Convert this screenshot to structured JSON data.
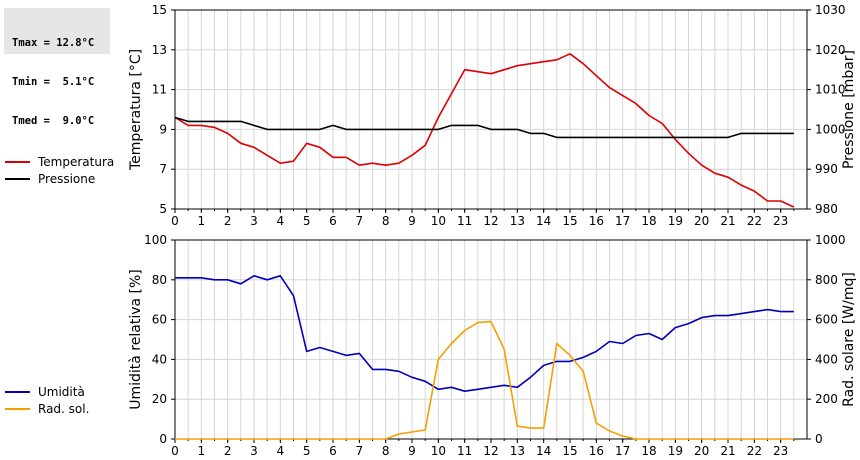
{
  "stats": {
    "tmax": "Tmax = 12.8°C",
    "tmin": "Tmin =  5.1°C",
    "tmed": "Tmed =  9.0°C"
  },
  "colors": {
    "red": "#dd0000",
    "black": "#000000",
    "blue": "#0000bb",
    "orange": "#f5a000"
  },
  "chart_data": [
    {
      "type": "line",
      "xlim": [
        0,
        24
      ],
      "x_ticks": [
        "0",
        "1",
        "2",
        "3",
        "4",
        "5",
        "6",
        "7",
        "8",
        "9",
        "10",
        "11",
        "12",
        "13",
        "14",
        "15",
        "16",
        "17",
        "18",
        "19",
        "20",
        "21",
        "22",
        "23"
      ],
      "ylabel": "Temperatura [°C]",
      "ylim": [
        5,
        15
      ],
      "y_ticks": [
        "5",
        "7",
        "9",
        "11",
        "13",
        "15"
      ],
      "y2label": "Pressione [mbar]",
      "y2lim": [
        980,
        1030
      ],
      "y2_ticks": [
        "980",
        "990",
        "1000",
        "1010",
        "1020",
        "1030"
      ],
      "grid": true,
      "legend": [
        "Temperatura",
        "Pressione"
      ],
      "series": [
        {
          "name": "Temperatura",
          "color": "#dd0000",
          "axis": "left",
          "x": [
            0,
            0.5,
            1,
            1.5,
            2,
            2.5,
            3,
            3.5,
            4,
            4.5,
            5,
            5.5,
            6,
            6.5,
            7,
            7.5,
            8,
            8.5,
            9,
            9.5,
            10,
            10.5,
            11,
            11.5,
            12,
            12.5,
            13,
            13.5,
            14,
            14.5,
            15,
            15.5,
            16,
            16.5,
            17,
            17.5,
            18,
            18.5,
            19,
            19.5,
            20,
            20.5,
            21,
            21.5,
            22,
            22.5,
            23,
            23.5
          ],
          "y": [
            9.6,
            9.2,
            9.2,
            9.1,
            8.8,
            8.3,
            8.1,
            7.7,
            7.3,
            7.4,
            8.3,
            8.1,
            7.6,
            7.6,
            7.2,
            7.3,
            7.2,
            7.3,
            7.7,
            8.2,
            9.6,
            10.8,
            12.0,
            11.9,
            11.8,
            12.0,
            12.2,
            12.3,
            12.4,
            12.5,
            12.8,
            12.3,
            11.7,
            11.1,
            10.7,
            10.3,
            9.7,
            9.3,
            8.5,
            7.8,
            7.2,
            6.8,
            6.6,
            6.2,
            5.9,
            5.4,
            5.4,
            5.1
          ]
        },
        {
          "name": "Pressione",
          "color": "#000000",
          "axis": "right",
          "x": [
            0,
            0.5,
            1,
            1.5,
            2,
            2.5,
            3,
            3.5,
            4,
            4.5,
            5,
            5.5,
            6,
            6.5,
            7,
            7.5,
            8,
            8.5,
            9,
            9.5,
            10,
            10.5,
            11,
            11.5,
            12,
            12.5,
            13,
            13.5,
            14,
            14.5,
            15,
            15.5,
            16,
            16.5,
            17,
            17.5,
            18,
            18.5,
            19,
            19.5,
            20,
            20.5,
            21,
            21.5,
            22,
            22.5,
            23,
            23.5
          ],
          "y": [
            1003,
            1002,
            1002,
            1002,
            1002,
            1002,
            1001,
            1000,
            1000,
            1000,
            1000,
            1000,
            1001,
            1000,
            1000,
            1000,
            1000,
            1000,
            1000,
            1000,
            1000,
            1001,
            1001,
            1001,
            1000,
            1000,
            1000,
            999,
            999,
            998,
            998,
            998,
            998,
            998,
            998,
            998,
            998,
            998,
            998,
            998,
            998,
            998,
            998,
            999,
            999,
            999,
            999,
            999
          ]
        }
      ]
    },
    {
      "type": "line",
      "xlim": [
        0,
        24
      ],
      "x_ticks": [
        "0",
        "1",
        "2",
        "3",
        "4",
        "5",
        "6",
        "7",
        "8",
        "9",
        "10",
        "11",
        "12",
        "13",
        "14",
        "15",
        "16",
        "17",
        "18",
        "19",
        "20",
        "21",
        "22",
        "23"
      ],
      "ylabel": "Umidità relativa [%]",
      "ylim": [
        0,
        100
      ],
      "y_ticks": [
        "0",
        "20",
        "40",
        "60",
        "80",
        "100"
      ],
      "y2label": "Rad. solare [W/mq]",
      "y2lim": [
        0,
        1000
      ],
      "y2_ticks": [
        "0",
        "200",
        "400",
        "600",
        "800",
        "1000"
      ],
      "grid": true,
      "legend": [
        "Umidità",
        "Rad. sol."
      ],
      "series": [
        {
          "name": "Umidità",
          "color": "#0000bb",
          "axis": "left",
          "x": [
            0,
            0.5,
            1,
            1.5,
            2,
            2.5,
            3,
            3.5,
            4,
            4.5,
            5,
            5.5,
            6,
            6.5,
            7,
            7.5,
            8,
            8.5,
            9,
            9.5,
            10,
            10.5,
            11,
            11.5,
            12,
            12.5,
            13,
            13.5,
            14,
            14.5,
            15,
            15.5,
            16,
            16.5,
            17,
            17.5,
            18,
            18.5,
            19,
            19.5,
            20,
            20.5,
            21,
            21.5,
            22,
            22.5,
            23,
            23.5
          ],
          "y": [
            81,
            81,
            81,
            80,
            80,
            78,
            82,
            80,
            82,
            72,
            44,
            46,
            44,
            42,
            43,
            35,
            35,
            34,
            31,
            29,
            25,
            26,
            24,
            25,
            26,
            27,
            26,
            31,
            37,
            39,
            39,
            41,
            44,
            49,
            48,
            52,
            53,
            50,
            56,
            58,
            61,
            62,
            62,
            63,
            64,
            65,
            64,
            64
          ]
        },
        {
          "name": "Rad. sol.",
          "color": "#f5a000",
          "axis": "right",
          "x": [
            0,
            0.5,
            1,
            1.5,
            2,
            2.5,
            3,
            3.5,
            4,
            4.5,
            5,
            5.5,
            6,
            6.5,
            7,
            7.5,
            8,
            8.5,
            9,
            9.5,
            10,
            10.5,
            11,
            11.5,
            12,
            12.5,
            13,
            13.5,
            14,
            14.5,
            15,
            15.5,
            16,
            16.5,
            17,
            17.5,
            18,
            18.5,
            19,
            19.5,
            20,
            20.5,
            21,
            21.5,
            22,
            22.5,
            23,
            23.5
          ],
          "y": [
            0,
            0,
            0,
            0,
            0,
            0,
            0,
            0,
            0,
            0,
            0,
            0,
            0,
            0,
            0,
            0,
            0,
            25,
            35,
            45,
            400,
            480,
            545,
            585,
            590,
            450,
            65,
            55,
            55,
            480,
            420,
            340,
            80,
            40,
            15,
            0,
            0,
            0,
            0,
            0,
            0,
            0,
            0,
            0,
            0,
            0,
            0,
            0
          ]
        }
      ]
    }
  ]
}
